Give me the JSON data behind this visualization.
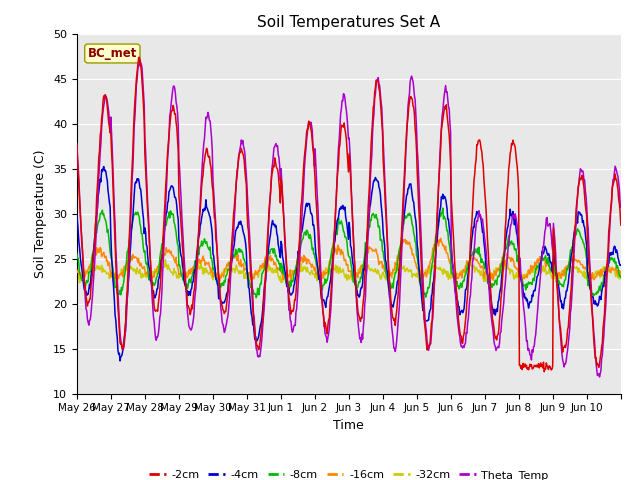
{
  "title": "Soil Temperatures Set A",
  "xlabel": "Time",
  "ylabel": "Soil Temperature (C)",
  "ylim": [
    10,
    50
  ],
  "yticks": [
    10,
    15,
    20,
    25,
    30,
    35,
    40,
    45,
    50
  ],
  "annotation": "BC_met",
  "bg_color": "#e8e8e8",
  "series_colors": {
    "-2cm": "#dd0000",
    "-4cm": "#0000cc",
    "-8cm": "#00bb00",
    "-16cm": "#ff8800",
    "-32cm": "#cccc00",
    "Theta_Temp": "#aa00cc"
  },
  "x_tick_labels": [
    "May 26",
    "May 27",
    "May 28",
    "May 29",
    "May 30",
    "May 31",
    "Jun 1",
    "Jun 2",
    "Jun 3",
    "Jun 4",
    "Jun 5",
    "Jun 6",
    "Jun 7",
    "Jun 8",
    "Jun 9",
    "Jun 10"
  ],
  "figsize": [
    6.4,
    4.8
  ],
  "dpi": 100
}
